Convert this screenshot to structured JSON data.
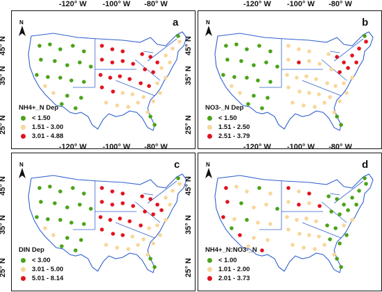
{
  "colors": {
    "green": "#4aa319",
    "tan": "#f7d79b",
    "red": "#e0121e",
    "state_border": "#2f5fcf",
    "coast": "#2f5fcf"
  },
  "axes": {
    "lon_labels": [
      "-120° W",
      "-100° W",
      "-80° W"
    ],
    "lat_labels": [
      "45° N",
      "35° N",
      "25° N"
    ]
  },
  "north_arrow_label": "N",
  "panels": [
    {
      "letter": "a",
      "legend_title": "NH4+_N Dep",
      "classes": [
        "< 1.50",
        "1.51 - 3.00",
        "3.01 - 4.88"
      ]
    },
    {
      "letter": "b",
      "legend_title": "NO3-_N Dep",
      "classes": [
        "< 1.50",
        "1.51 - 2.50",
        "2.51 - 3.79"
      ]
    },
    {
      "letter": "c",
      "legend_title": "DIN Dep",
      "classes": [
        "< 3.00",
        "3.01 - 5.00",
        "5.01 - 8.14"
      ]
    },
    {
      "letter": "d",
      "legend_title": "NH4+_N:NO3-_N",
      "classes": [
        "< 1.00",
        "1.01 - 2.00",
        "2.01 - 3.73"
      ]
    }
  ]
}
